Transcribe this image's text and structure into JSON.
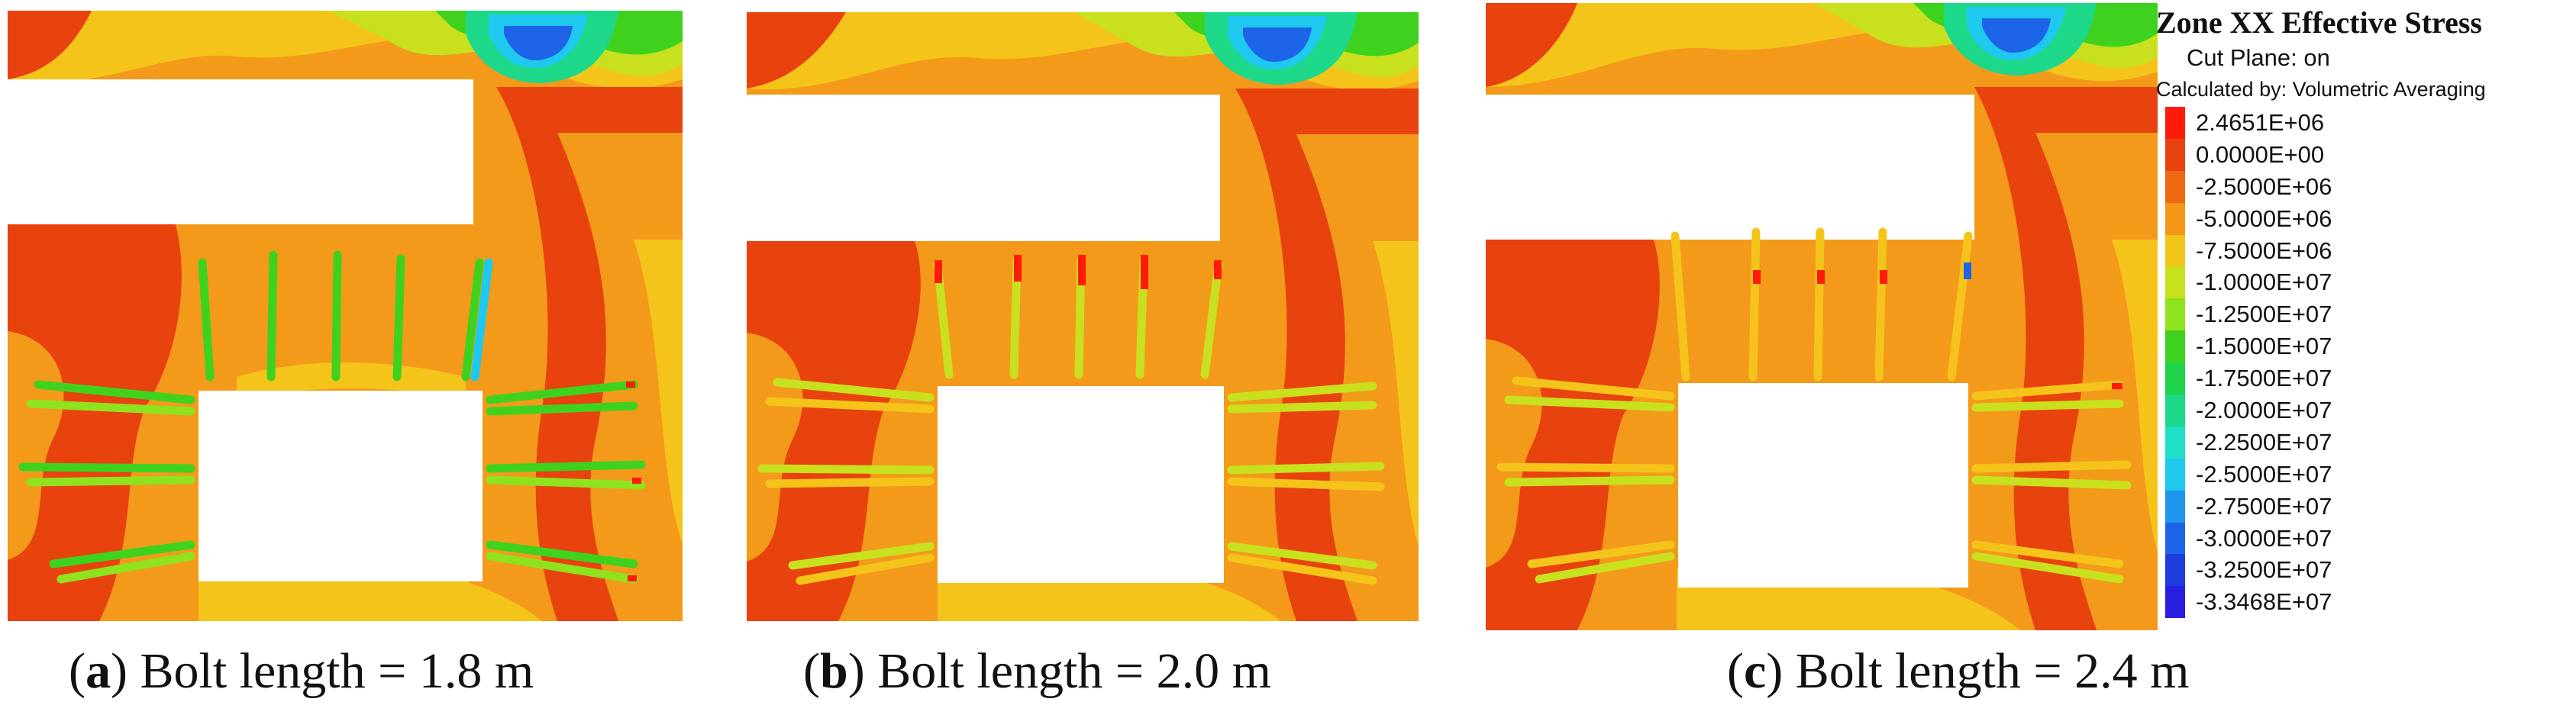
{
  "figure": {
    "panels": [
      {
        "id": "a",
        "letter": "a",
        "caption_text": " Bolt length = 1.8 m"
      },
      {
        "id": "b",
        "letter": "b",
        "caption_text": " Bolt length = 2.0 m"
      },
      {
        "id": "c",
        "letter": "c",
        "caption_text": " Bolt length = 2.4 m"
      }
    ]
  },
  "legend": {
    "title": "Zone XX Effective Stress",
    "cut_plane": "Cut Plane: on",
    "calculated_by": "Calculated by: Volumetric Averaging",
    "entries": [
      {
        "value": "2.4651E+06",
        "color": "#ff1a0a"
      },
      {
        "value": "0.0000E+00",
        "color": "#e8420e"
      },
      {
        "value": "-2.5000E+06",
        "color": "#ee6a12"
      },
      {
        "value": "-5.0000E+06",
        "color": "#f59618"
      },
      {
        "value": "-7.5000E+06",
        "color": "#f2c51b"
      },
      {
        "value": "-1.0000E+07",
        "color": "#c8e01e"
      },
      {
        "value": "-1.2500E+07",
        "color": "#8fe21e"
      },
      {
        "value": "-1.5000E+07",
        "color": "#3ed21e"
      },
      {
        "value": "-1.7500E+07",
        "color": "#1ed24a"
      },
      {
        "value": "-2.0000E+07",
        "color": "#1ed88a"
      },
      {
        "value": "-2.2500E+07",
        "color": "#1ee0c8"
      },
      {
        "value": "-2.5000E+07",
        "color": "#1ec8ee"
      },
      {
        "value": "-2.7500E+07",
        "color": "#1e96ee"
      },
      {
        "value": "-3.0000E+07",
        "color": "#1e64e8"
      },
      {
        "value": "-3.2500E+07",
        "color": "#1e3ce0"
      },
      {
        "value": "-3.3468E+07",
        "color": "#2a1ee0"
      }
    ]
  }
}
